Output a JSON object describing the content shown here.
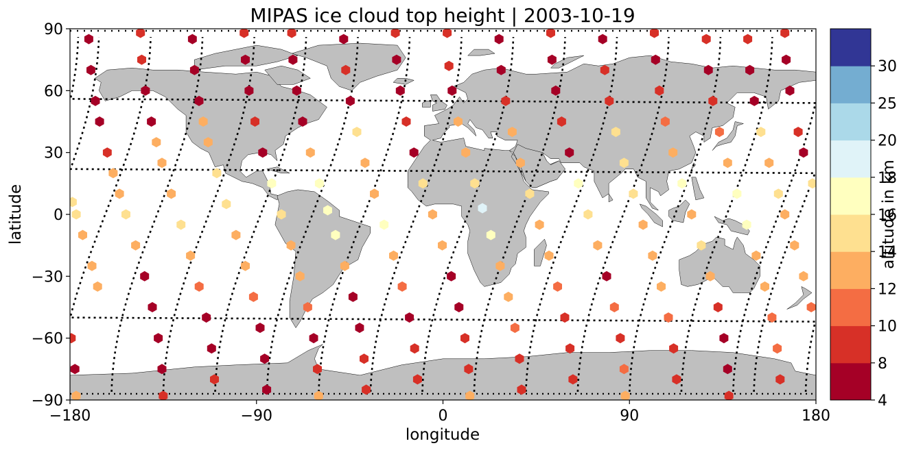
{
  "chart_data": {
    "type": "scatter",
    "title": "MIPAS ice cloud top height | 2003-10-19",
    "xlabel": "longitude",
    "ylabel": "latitude",
    "xlim": [
      -180,
      180
    ],
    "ylim": [
      -90,
      90
    ],
    "x_ticks": [
      -180,
      -90,
      0,
      90,
      180
    ],
    "y_ticks": [
      90,
      60,
      30,
      0,
      -30,
      -60,
      -90
    ],
    "x_tick_labels": [
      "−180",
      "−90",
      "0",
      "90",
      "180"
    ],
    "y_tick_labels": [
      "90",
      "60",
      "30",
      "0",
      "−30",
      "−60",
      "−90"
    ],
    "grid": false,
    "land_color": "#bfbfbf",
    "track_color": "#000000",
    "colorbar": {
      "label": "altitude in km",
      "levels": [
        4,
        8,
        10,
        12,
        14,
        16,
        18,
        20,
        25,
        30
      ],
      "tick_labels": [
        "4",
        "8",
        "10",
        "12",
        "14",
        "16",
        "18",
        "20",
        "25",
        "30"
      ],
      "colors": [
        "#a50026",
        "#d73027",
        "#f46d43",
        "#fdae61",
        "#fee090",
        "#ffffbf",
        "#e0f3f8",
        "#abd9e9",
        "#74add1",
        "#313695"
      ]
    },
    "orbit_tracks": [
      {
        "equator_lon": -180
      },
      {
        "equator_lon": -155
      },
      {
        "equator_lon": -130
      },
      {
        "equator_lon": -105
      },
      {
        "equator_lon": -80
      },
      {
        "equator_lon": -55
      },
      {
        "equator_lon": -30
      },
      {
        "equator_lon": -5
      },
      {
        "equator_lon": 20
      },
      {
        "equator_lon": 45
      },
      {
        "equator_lon": 70
      },
      {
        "equator_lon": 95
      },
      {
        "equator_lon": 120
      },
      {
        "equator_lon": 145
      },
      {
        "equator_lon": 170
      }
    ],
    "cloud_tracks": [
      {
        "lon_at_eq": -177,
        "heights": [
          [
            88,
            8
          ],
          [
            75,
            6
          ],
          [
            60,
            7
          ],
          [
            40,
            8
          ],
          [
            30,
            7
          ],
          [
            15,
            14
          ],
          [
            6,
            15
          ],
          [
            0,
            14
          ],
          [
            -10,
            13
          ],
          [
            -25,
            12
          ],
          [
            -35,
            12
          ]
        ]
      },
      {
        "lon_at_eq": -153,
        "heights": [
          [
            85,
            6
          ],
          [
            70,
            7
          ],
          [
            55,
            6
          ],
          [
            45,
            7
          ],
          [
            30,
            8
          ],
          [
            20,
            12
          ],
          [
            10,
            13
          ],
          [
            0,
            14
          ],
          [
            -15,
            13
          ],
          [
            -30,
            7
          ],
          [
            -45,
            6
          ],
          [
            -60,
            7
          ],
          [
            -75,
            6
          ],
          [
            -88,
            8
          ]
        ]
      },
      {
        "lon_at_eq": -128,
        "heights": [
          [
            88,
            9
          ],
          [
            75,
            8
          ],
          [
            60,
            7
          ],
          [
            45,
            7
          ],
          [
            35,
            12
          ],
          [
            25,
            12
          ],
          [
            10,
            13
          ],
          [
            -5,
            14
          ],
          [
            -20,
            12
          ],
          [
            -35,
            11
          ],
          [
            -50,
            7
          ],
          [
            -65,
            6
          ],
          [
            -80,
            8
          ]
        ]
      },
      {
        "lon_at_eq": -103,
        "heights": [
          [
            85,
            7
          ],
          [
            70,
            6
          ],
          [
            55,
            7
          ],
          [
            45,
            13
          ],
          [
            35,
            13
          ],
          [
            20,
            14
          ],
          [
            5,
            14
          ],
          [
            -10,
            13
          ],
          [
            -25,
            12
          ],
          [
            -40,
            11
          ],
          [
            -55,
            7
          ],
          [
            -70,
            6
          ],
          [
            -85,
            6
          ]
        ]
      },
      {
        "lon_at_eq": -78,
        "heights": [
          [
            88,
            9
          ],
          [
            75,
            6
          ],
          [
            60,
            7
          ],
          [
            45,
            8
          ],
          [
            30,
            6
          ],
          [
            15,
            17
          ],
          [
            0,
            14
          ],
          [
            -15,
            13
          ],
          [
            -30,
            12
          ],
          [
            -45,
            11
          ],
          [
            -60,
            7
          ],
          [
            -75,
            8
          ],
          [
            -88,
            12
          ]
        ]
      },
      {
        "lon_at_eq": -55,
        "heights": [
          [
            88,
            8
          ],
          [
            75,
            7
          ],
          [
            60,
            6
          ],
          [
            45,
            7
          ],
          [
            30,
            13
          ],
          [
            15,
            16
          ],
          [
            2,
            17
          ],
          [
            -10,
            17
          ],
          [
            -25,
            12
          ],
          [
            -40,
            7
          ],
          [
            -55,
            6
          ],
          [
            -70,
            8
          ],
          [
            -85,
            9
          ]
        ]
      },
      {
        "lon_at_eq": -30,
        "heights": [
          [
            85,
            7
          ],
          [
            70,
            8
          ],
          [
            55,
            7
          ],
          [
            40,
            14
          ],
          [
            25,
            13
          ],
          [
            10,
            13
          ],
          [
            -5,
            17
          ],
          [
            -20,
            12
          ],
          [
            -35,
            11
          ],
          [
            -50,
            7
          ],
          [
            -65,
            8
          ],
          [
            -80,
            9
          ]
        ]
      },
      {
        "lon_at_eq": -5,
        "heights": [
          [
            88,
            9
          ],
          [
            75,
            7
          ],
          [
            60,
            7
          ],
          [
            45,
            8
          ],
          [
            30,
            7
          ],
          [
            15,
            14
          ],
          [
            0,
            12
          ],
          [
            -15,
            13
          ],
          [
            -30,
            7
          ],
          [
            -45,
            7
          ],
          [
            -60,
            8
          ],
          [
            -75,
            9
          ],
          [
            -88,
            12
          ]
        ]
      },
      {
        "lon_at_eq": 20,
        "heights": [
          [
            88,
            9
          ],
          [
            72,
            8
          ],
          [
            60,
            7
          ],
          [
            45,
            12
          ],
          [
            30,
            13
          ],
          [
            15,
            14
          ],
          [
            3,
            18
          ],
          [
            -10,
            17
          ],
          [
            -25,
            13
          ],
          [
            -40,
            12
          ],
          [
            -55,
            11
          ],
          [
            -70,
            8
          ],
          [
            -85,
            8
          ]
        ]
      },
      {
        "lon_at_eq": 45,
        "heights": [
          [
            85,
            7
          ],
          [
            70,
            7
          ],
          [
            55,
            8
          ],
          [
            40,
            13
          ],
          [
            25,
            12
          ],
          [
            10,
            14
          ],
          [
            -5,
            12
          ],
          [
            -20,
            12
          ],
          [
            -35,
            11
          ],
          [
            -50,
            8
          ],
          [
            -65,
            9
          ],
          [
            -80,
            8
          ]
        ]
      },
      {
        "lon_at_eq": 70,
        "heights": [
          [
            88,
            9
          ],
          [
            75,
            7
          ],
          [
            60,
            7
          ],
          [
            45,
            8
          ],
          [
            30,
            7
          ],
          [
            15,
            17
          ],
          [
            0,
            14
          ],
          [
            -15,
            12
          ],
          [
            -30,
            7
          ],
          [
            -45,
            11
          ],
          [
            -60,
            8
          ],
          [
            -75,
            11
          ],
          [
            -88,
            12
          ]
        ]
      },
      {
        "lon_at_eq": 95,
        "heights": [
          [
            85,
            7
          ],
          [
            70,
            8
          ],
          [
            55,
            8
          ],
          [
            40,
            14
          ],
          [
            25,
            14
          ],
          [
            10,
            15
          ],
          [
            -5,
            13
          ],
          [
            -20,
            12
          ],
          [
            -35,
            12
          ],
          [
            -50,
            11
          ],
          [
            -65,
            8
          ],
          [
            -80,
            8
          ]
        ]
      },
      {
        "lon_at_eq": 120,
        "heights": [
          [
            88,
            9
          ],
          [
            75,
            6
          ],
          [
            60,
            8
          ],
          [
            45,
            11
          ],
          [
            30,
            12
          ],
          [
            15,
            17
          ],
          [
            0,
            12
          ],
          [
            -15,
            15
          ],
          [
            -30,
            12
          ],
          [
            -45,
            8
          ],
          [
            -60,
            7
          ],
          [
            -75,
            6
          ],
          [
            -88,
            8
          ]
        ]
      },
      {
        "lon_at_eq": 145,
        "heights": [
          [
            85,
            8
          ],
          [
            70,
            7
          ],
          [
            55,
            8
          ],
          [
            40,
            11
          ],
          [
            25,
            13
          ],
          [
            10,
            16
          ],
          [
            -5,
            17
          ],
          [
            -20,
            13
          ],
          [
            -35,
            12
          ],
          [
            -50,
            10
          ],
          [
            -65,
            11
          ],
          [
            -80,
            9
          ]
        ]
      },
      {
        "lon_at_eq": 165,
        "heights": [
          [
            85,
            8
          ],
          [
            70,
            7
          ],
          [
            55,
            7
          ],
          [
            40,
            14
          ],
          [
            25,
            13
          ],
          [
            10,
            14
          ],
          [
            0,
            13
          ],
          [
            -15,
            13
          ],
          [
            -30,
            12
          ],
          [
            -45,
            11
          ],
          [
            -60,
            9
          ],
          [
            -75,
            6
          ],
          [
            -88,
            12
          ]
        ]
      }
    ]
  }
}
